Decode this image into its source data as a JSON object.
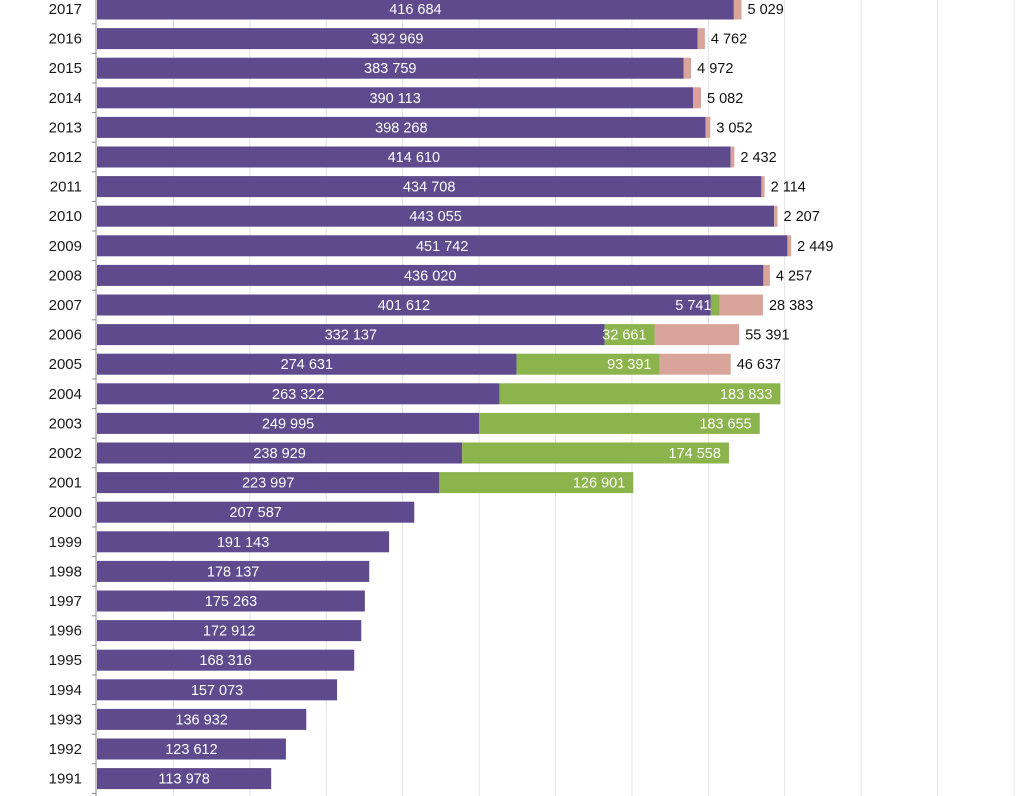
{
  "chart_data": {
    "type": "bar",
    "orientation": "horizontal",
    "stacked": true,
    "xlim": [
      0,
      600000
    ],
    "grid": true,
    "colors": {
      "purple": "#5e4a8c",
      "green": "#8cb44c",
      "pink": "#d9a59a",
      "grid": "#e4e4e4",
      "axis": "#888888"
    },
    "categories": [
      "2017",
      "2016",
      "2015",
      "2014",
      "2013",
      "2012",
      "2011",
      "2010",
      "2009",
      "2008",
      "2007",
      "2006",
      "2005",
      "2004",
      "2003",
      "2002",
      "2001",
      "2000",
      "1999",
      "1998",
      "1997",
      "1996",
      "1995",
      "1994",
      "1993",
      "1992",
      "1991"
    ],
    "series": [
      {
        "color": "purple",
        "values": [
          416684,
          392969,
          383759,
          390113,
          398268,
          414610,
          434708,
          443055,
          451742,
          436020,
          401612,
          332137,
          274631,
          263322,
          249995,
          238929,
          223997,
          207587,
          191143,
          178137,
          175263,
          172912,
          168316,
          157073,
          136932,
          123612,
          113978
        ],
        "labels": [
          "416 684",
          "392 969",
          "383 759",
          "390 113",
          "398 268",
          "414 610",
          "434 708",
          "443 055",
          "451 742",
          "436 020",
          "401 612",
          "332 137",
          "274 631",
          "263 322",
          "249 995",
          "238 929",
          "223 997",
          "207 587",
          "191 143",
          "178 137",
          "175 263",
          "172 912",
          "168 316",
          "157 073",
          "136 932",
          "123 612",
          "113 978"
        ]
      },
      {
        "color": "green",
        "values": [
          0,
          0,
          0,
          0,
          0,
          0,
          0,
          0,
          0,
          0,
          5741,
          32661,
          93391,
          183833,
          183655,
          174558,
          126901,
          0,
          0,
          0,
          0,
          0,
          0,
          0,
          0,
          0,
          0
        ],
        "labels": [
          "",
          "",
          "",
          "",
          "",
          "",
          "",
          "",
          "",
          "",
          "5 741",
          "32 661",
          "93 391",
          "183 833",
          "183 655",
          "174 558",
          "126 901",
          "",
          "",
          "",
          "",
          "",
          "",
          "",
          "",
          "",
          ""
        ]
      },
      {
        "color": "pink",
        "values": [
          5029,
          4762,
          4972,
          5082,
          3052,
          2432,
          2114,
          2207,
          2449,
          4257,
          28383,
          55391,
          46637,
          0,
          0,
          0,
          0,
          0,
          0,
          0,
          0,
          0,
          0,
          0,
          0,
          0,
          0
        ],
        "labels": [
          "5 029",
          "4 762",
          "4 972",
          "5 082",
          "3 052",
          "2 432",
          "2 114",
          "2 207",
          "2 449",
          "4 257",
          "28 383",
          "55 391",
          "46 637",
          "",
          "",
          "",
          "",
          "",
          "",
          "",
          "",
          "",
          "",
          "",
          "",
          "",
          ""
        ]
      }
    ]
  }
}
